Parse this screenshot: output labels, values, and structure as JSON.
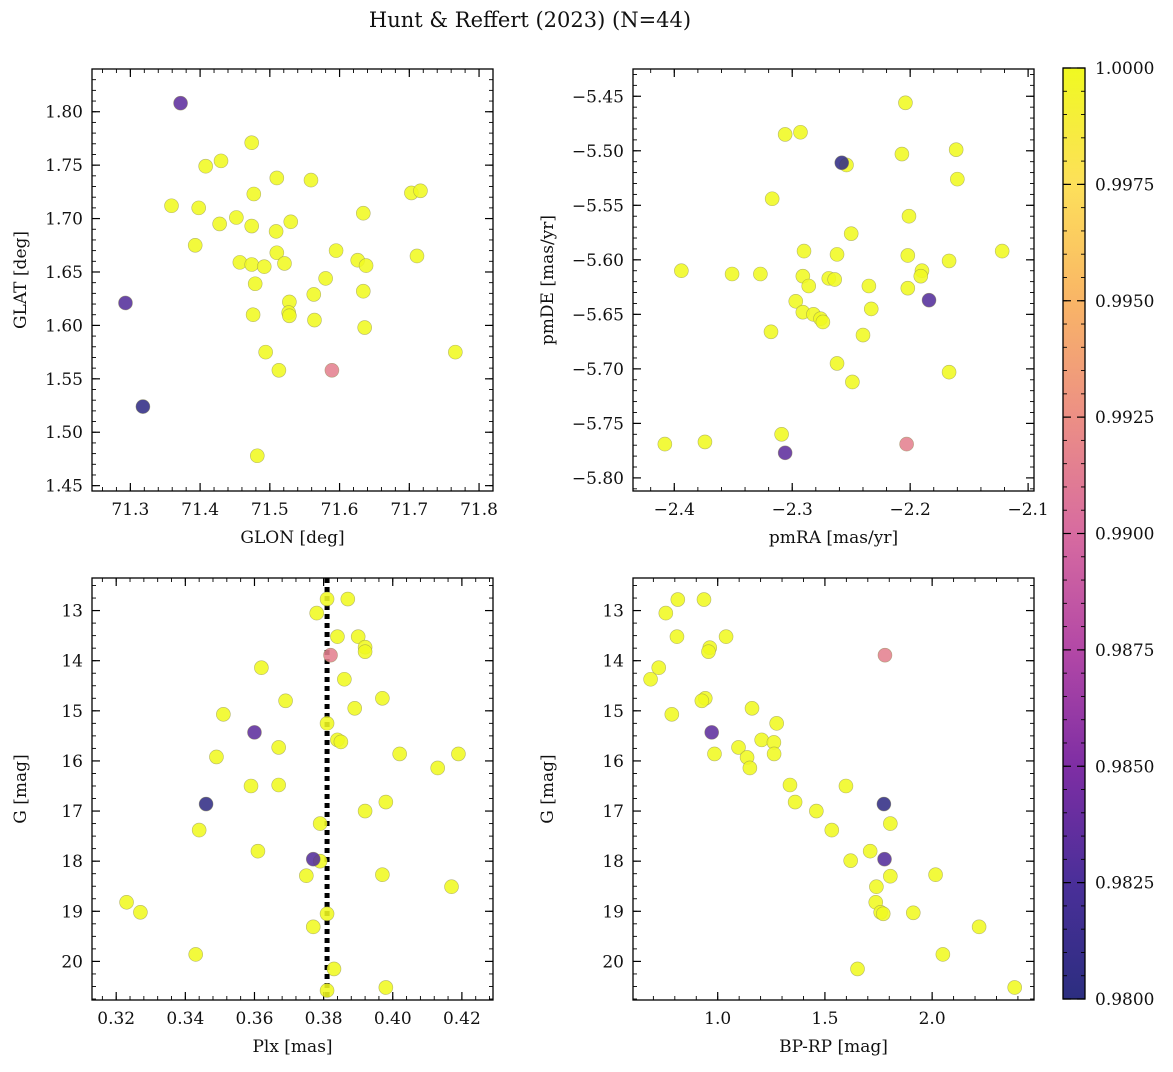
{
  "figure": {
    "title": "Hunt & Reffert (2023) (N=44)",
    "colorbar": {
      "min": 0.98,
      "max": 1.0,
      "tick_labels": [
        "0.9800",
        "0.9825",
        "0.9850",
        "0.9875",
        "0.9900",
        "0.9925",
        "0.9950",
        "0.9975",
        "1.0000"
      ],
      "colormap": "plasma",
      "colors": [
        "#2c2e80",
        "#4a2f99",
        "#7e2ea4",
        "#b348a6",
        "#d76ba0",
        "#ec8f85",
        "#f9b566",
        "#fde05a",
        "#f0f921"
      ]
    }
  },
  "chart_data": [
    {
      "type": "scatter",
      "xlabel": "GLON [deg]",
      "ylabel": "GLAT [deg]",
      "xlim": [
        71.245,
        71.82
      ],
      "ylim": [
        1.445,
        1.84
      ],
      "y_inverted": false,
      "xticks": [
        71.3,
        71.4,
        71.5,
        71.6,
        71.7,
        71.8
      ],
      "xtick_labels": [
        "71.3",
        "71.4",
        "71.5",
        "71.6",
        "71.7",
        "71.8"
      ],
      "yticks": [
        1.45,
        1.5,
        1.55,
        1.6,
        1.65,
        1.7,
        1.75,
        1.8
      ],
      "ytick_labels": [
        "1.45",
        "1.50",
        "1.55",
        "1.60",
        "1.65",
        "1.70",
        "1.75",
        "1.80"
      ],
      "points": [
        {
          "x": 71.372,
          "y": 1.808,
          "c": 0.9835
        },
        {
          "x": 71.293,
          "y": 1.621,
          "c": 0.983
        },
        {
          "x": 71.318,
          "y": 1.524,
          "c": 0.9805
        },
        {
          "x": 71.589,
          "y": 1.558,
          "c": 0.9915
        },
        {
          "x": 71.474,
          "y": 1.771,
          "c": 1.0
        },
        {
          "x": 71.43,
          "y": 1.754,
          "c": 1.0
        },
        {
          "x": 71.408,
          "y": 1.749,
          "c": 1.0
        },
        {
          "x": 71.51,
          "y": 1.738,
          "c": 1.0
        },
        {
          "x": 71.559,
          "y": 1.736,
          "c": 1.0
        },
        {
          "x": 71.477,
          "y": 1.723,
          "c": 1.0
        },
        {
          "x": 71.703,
          "y": 1.724,
          "c": 1.0
        },
        {
          "x": 71.716,
          "y": 1.726,
          "c": 1.0
        },
        {
          "x": 71.359,
          "y": 1.712,
          "c": 1.0
        },
        {
          "x": 71.398,
          "y": 1.71,
          "c": 1.0
        },
        {
          "x": 71.634,
          "y": 1.705,
          "c": 1.0
        },
        {
          "x": 71.452,
          "y": 1.701,
          "c": 1.0
        },
        {
          "x": 71.428,
          "y": 1.695,
          "c": 1.0
        },
        {
          "x": 71.474,
          "y": 1.693,
          "c": 1.0
        },
        {
          "x": 71.53,
          "y": 1.697,
          "c": 1.0
        },
        {
          "x": 71.509,
          "y": 1.688,
          "c": 1.0
        },
        {
          "x": 71.393,
          "y": 1.675,
          "c": 1.0
        },
        {
          "x": 71.595,
          "y": 1.67,
          "c": 1.0
        },
        {
          "x": 71.51,
          "y": 1.668,
          "c": 1.0
        },
        {
          "x": 71.711,
          "y": 1.665,
          "c": 1.0
        },
        {
          "x": 71.626,
          "y": 1.661,
          "c": 1.0
        },
        {
          "x": 71.457,
          "y": 1.659,
          "c": 1.0
        },
        {
          "x": 71.474,
          "y": 1.657,
          "c": 1.0
        },
        {
          "x": 71.521,
          "y": 1.658,
          "c": 1.0
        },
        {
          "x": 71.492,
          "y": 1.655,
          "c": 1.0
        },
        {
          "x": 71.638,
          "y": 1.656,
          "c": 1.0
        },
        {
          "x": 71.58,
          "y": 1.644,
          "c": 1.0
        },
        {
          "x": 71.479,
          "y": 1.639,
          "c": 1.0
        },
        {
          "x": 71.634,
          "y": 1.632,
          "c": 1.0
        },
        {
          "x": 71.563,
          "y": 1.629,
          "c": 1.0
        },
        {
          "x": 71.528,
          "y": 1.622,
          "c": 1.0
        },
        {
          "x": 71.527,
          "y": 1.612,
          "c": 1.0
        },
        {
          "x": 71.528,
          "y": 1.609,
          "c": 1.0
        },
        {
          "x": 71.476,
          "y": 1.61,
          "c": 1.0
        },
        {
          "x": 71.564,
          "y": 1.605,
          "c": 1.0
        },
        {
          "x": 71.636,
          "y": 1.598,
          "c": 1.0
        },
        {
          "x": 71.494,
          "y": 1.575,
          "c": 1.0
        },
        {
          "x": 71.766,
          "y": 1.575,
          "c": 1.0
        },
        {
          "x": 71.513,
          "y": 1.558,
          "c": 1.0
        },
        {
          "x": 71.482,
          "y": 1.478,
          "c": 1.0
        }
      ]
    },
    {
      "type": "scatter",
      "xlabel": "pmRA [mas/yr]",
      "ylabel": "pmDE [mas/yr]",
      "xlim": [
        -2.435,
        -2.095
      ],
      "ylim": [
        -5.812,
        -5.425
      ],
      "y_inverted": false,
      "xticks": [
        -2.4,
        -2.3,
        -2.2,
        -2.1
      ],
      "xtick_labels": [
        "−2.4",
        "−2.3",
        "−2.2",
        "−2.1"
      ],
      "yticks": [
        -5.8,
        -5.75,
        -5.7,
        -5.65,
        -5.6,
        -5.55,
        -5.5,
        -5.45
      ],
      "ytick_labels": [
        "−5.80",
        "−5.75",
        "−5.70",
        "−5.65",
        "−5.60",
        "−5.55",
        "−5.50",
        "−5.45"
      ],
      "points": [
        {
          "x": -2.258,
          "y": -5.511,
          "c": 0.9805
        },
        {
          "x": -2.184,
          "y": -5.637,
          "c": 0.983
        },
        {
          "x": -2.306,
          "y": -5.777,
          "c": 0.9835
        },
        {
          "x": -2.203,
          "y": -5.769,
          "c": 0.9915
        },
        {
          "x": -2.204,
          "y": -5.456,
          "c": 1.0
        },
        {
          "x": -2.306,
          "y": -5.485,
          "c": 1.0
        },
        {
          "x": -2.293,
          "y": -5.483,
          "c": 1.0
        },
        {
          "x": -2.161,
          "y": -5.499,
          "c": 1.0
        },
        {
          "x": -2.207,
          "y": -5.503,
          "c": 1.0
        },
        {
          "x": -2.254,
          "y": -5.513,
          "c": 1.0
        },
        {
          "x": -2.16,
          "y": -5.526,
          "c": 1.0
        },
        {
          "x": -2.317,
          "y": -5.544,
          "c": 1.0
        },
        {
          "x": -2.201,
          "y": -5.56,
          "c": 1.0
        },
        {
          "x": -2.25,
          "y": -5.576,
          "c": 1.0
        },
        {
          "x": -2.122,
          "y": -5.592,
          "c": 1.0
        },
        {
          "x": -2.29,
          "y": -5.592,
          "c": 1.0
        },
        {
          "x": -2.262,
          "y": -5.595,
          "c": 1.0
        },
        {
          "x": -2.202,
          "y": -5.596,
          "c": 1.0
        },
        {
          "x": -2.167,
          "y": -5.601,
          "c": 1.0
        },
        {
          "x": -2.394,
          "y": -5.61,
          "c": 1.0
        },
        {
          "x": -2.19,
          "y": -5.61,
          "c": 1.0
        },
        {
          "x": -2.351,
          "y": -5.613,
          "c": 1.0
        },
        {
          "x": -2.327,
          "y": -5.613,
          "c": 1.0
        },
        {
          "x": -2.191,
          "y": -5.615,
          "c": 1.0
        },
        {
          "x": -2.291,
          "y": -5.615,
          "c": 1.0
        },
        {
          "x": -2.269,
          "y": -5.617,
          "c": 1.0
        },
        {
          "x": -2.264,
          "y": -5.618,
          "c": 1.0
        },
        {
          "x": -2.235,
          "y": -5.624,
          "c": 1.0
        },
        {
          "x": -2.286,
          "y": -5.624,
          "c": 1.0
        },
        {
          "x": -2.202,
          "y": -5.626,
          "c": 1.0
        },
        {
          "x": -2.297,
          "y": -5.638,
          "c": 1.0
        },
        {
          "x": -2.233,
          "y": -5.645,
          "c": 1.0
        },
        {
          "x": -2.291,
          "y": -5.648,
          "c": 1.0
        },
        {
          "x": -2.282,
          "y": -5.65,
          "c": 1.0
        },
        {
          "x": -2.276,
          "y": -5.654,
          "c": 1.0
        },
        {
          "x": -2.274,
          "y": -5.657,
          "c": 1.0
        },
        {
          "x": -2.318,
          "y": -5.666,
          "c": 1.0
        },
        {
          "x": -2.24,
          "y": -5.669,
          "c": 1.0
        },
        {
          "x": -2.262,
          "y": -5.695,
          "c": 1.0
        },
        {
          "x": -2.167,
          "y": -5.703,
          "c": 1.0
        },
        {
          "x": -2.249,
          "y": -5.712,
          "c": 1.0
        },
        {
          "x": -2.309,
          "y": -5.76,
          "c": 1.0
        },
        {
          "x": -2.374,
          "y": -5.767,
          "c": 1.0
        },
        {
          "x": -2.408,
          "y": -5.769,
          "c": 1.0
        }
      ]
    },
    {
      "type": "scatter",
      "xlabel": "Plx [mas]",
      "ylabel": "G [mag]",
      "xlim": [
        0.313,
        0.429
      ],
      "ylim": [
        20.77,
        12.35
      ],
      "y_inverted": true,
      "vline": {
        "x": 0.381,
        "style": "dotted",
        "color": "#000000"
      },
      "xticks": [
        0.32,
        0.34,
        0.36,
        0.38,
        0.4,
        0.42
      ],
      "xtick_labels": [
        "0.32",
        "0.34",
        "0.36",
        "0.38",
        "0.40",
        "0.42"
      ],
      "yticks": [
        13,
        14,
        15,
        16,
        17,
        18,
        19,
        20
      ],
      "ytick_labels": [
        "13",
        "14",
        "15",
        "16",
        "17",
        "18",
        "19",
        "20"
      ],
      "points": [
        {
          "x": 0.346,
          "y": 16.86,
          "c": 0.9805
        },
        {
          "x": 0.36,
          "y": 15.43,
          "c": 0.9835
        },
        {
          "x": 0.377,
          "y": 17.96,
          "c": 0.983
        },
        {
          "x": 0.382,
          "y": 13.89,
          "c": 0.9915
        },
        {
          "x": 0.381,
          "y": 12.77,
          "c": 1.0
        },
        {
          "x": 0.387,
          "y": 12.77,
          "c": 1.0
        },
        {
          "x": 0.378,
          "y": 13.05,
          "c": 1.0
        },
        {
          "x": 0.384,
          "y": 13.52,
          "c": 1.0
        },
        {
          "x": 0.39,
          "y": 13.52,
          "c": 1.0
        },
        {
          "x": 0.392,
          "y": 13.73,
          "c": 1.0
        },
        {
          "x": 0.392,
          "y": 13.82,
          "c": 1.0
        },
        {
          "x": 0.362,
          "y": 14.14,
          "c": 1.0
        },
        {
          "x": 0.386,
          "y": 14.37,
          "c": 1.0
        },
        {
          "x": 0.369,
          "y": 14.8,
          "c": 1.0
        },
        {
          "x": 0.397,
          "y": 14.75,
          "c": 1.0
        },
        {
          "x": 0.389,
          "y": 14.95,
          "c": 1.0
        },
        {
          "x": 0.351,
          "y": 15.07,
          "c": 1.0
        },
        {
          "x": 0.381,
          "y": 15.25,
          "c": 1.0
        },
        {
          "x": 0.384,
          "y": 15.58,
          "c": 1.0
        },
        {
          "x": 0.385,
          "y": 15.62,
          "c": 1.0
        },
        {
          "x": 0.367,
          "y": 15.73,
          "c": 1.0
        },
        {
          "x": 0.402,
          "y": 15.86,
          "c": 1.0
        },
        {
          "x": 0.419,
          "y": 15.86,
          "c": 1.0
        },
        {
          "x": 0.349,
          "y": 15.92,
          "c": 1.0
        },
        {
          "x": 0.413,
          "y": 16.14,
          "c": 1.0
        },
        {
          "x": 0.359,
          "y": 16.5,
          "c": 1.0
        },
        {
          "x": 0.367,
          "y": 16.48,
          "c": 1.0
        },
        {
          "x": 0.398,
          "y": 16.82,
          "c": 1.0
        },
        {
          "x": 0.392,
          "y": 17.0,
          "c": 1.0
        },
        {
          "x": 0.379,
          "y": 17.25,
          "c": 1.0
        },
        {
          "x": 0.344,
          "y": 17.38,
          "c": 1.0
        },
        {
          "x": 0.361,
          "y": 17.8,
          "c": 1.0
        },
        {
          "x": 0.379,
          "y": 18.0,
          "c": 1.0
        },
        {
          "x": 0.375,
          "y": 18.29,
          "c": 1.0
        },
        {
          "x": 0.397,
          "y": 18.27,
          "c": 1.0
        },
        {
          "x": 0.417,
          "y": 18.51,
          "c": 1.0
        },
        {
          "x": 0.323,
          "y": 18.82,
          "c": 1.0
        },
        {
          "x": 0.327,
          "y": 19.02,
          "c": 1.0
        },
        {
          "x": 0.381,
          "y": 19.05,
          "c": 1.0
        },
        {
          "x": 0.377,
          "y": 19.31,
          "c": 1.0
        },
        {
          "x": 0.343,
          "y": 19.86,
          "c": 1.0
        },
        {
          "x": 0.383,
          "y": 20.15,
          "c": 1.0
        },
        {
          "x": 0.398,
          "y": 20.52,
          "c": 1.0
        },
        {
          "x": 0.381,
          "y": 20.58,
          "c": 1.0
        }
      ]
    },
    {
      "type": "scatter",
      "xlabel": "BP-RP [mag]",
      "ylabel": "G [mag]",
      "xlim": [
        0.605,
        2.475
      ],
      "ylim": [
        20.77,
        12.35
      ],
      "y_inverted": true,
      "xticks": [
        1.0,
        1.5,
        2.0
      ],
      "xtick_labels": [
        "1.0",
        "1.5",
        "2.0"
      ],
      "yticks": [
        13,
        14,
        15,
        16,
        17,
        18,
        19,
        20
      ],
      "ytick_labels": [
        "13",
        "14",
        "15",
        "16",
        "17",
        "18",
        "19",
        "20"
      ],
      "points": [
        {
          "x": 1.775,
          "y": 16.86,
          "c": 0.9805
        },
        {
          "x": 0.972,
          "y": 15.43,
          "c": 0.9835
        },
        {
          "x": 1.778,
          "y": 17.96,
          "c": 0.983
        },
        {
          "x": 1.78,
          "y": 13.89,
          "c": 0.9915
        },
        {
          "x": 0.814,
          "y": 12.78,
          "c": 1.0
        },
        {
          "x": 0.936,
          "y": 12.78,
          "c": 1.0
        },
        {
          "x": 0.758,
          "y": 13.05,
          "c": 1.0
        },
        {
          "x": 0.81,
          "y": 13.52,
          "c": 1.0
        },
        {
          "x": 1.039,
          "y": 13.52,
          "c": 1.0
        },
        {
          "x": 0.963,
          "y": 13.74,
          "c": 1.0
        },
        {
          "x": 0.957,
          "y": 13.82,
          "c": 1.0
        },
        {
          "x": 0.725,
          "y": 14.14,
          "c": 1.0
        },
        {
          "x": 0.687,
          "y": 14.37,
          "c": 1.0
        },
        {
          "x": 0.942,
          "y": 14.75,
          "c": 1.0
        },
        {
          "x": 0.926,
          "y": 14.8,
          "c": 1.0
        },
        {
          "x": 1.16,
          "y": 14.95,
          "c": 1.0
        },
        {
          "x": 0.786,
          "y": 15.07,
          "c": 1.0
        },
        {
          "x": 1.275,
          "y": 15.25,
          "c": 1.0
        },
        {
          "x": 1.205,
          "y": 15.58,
          "c": 1.0
        },
        {
          "x": 1.262,
          "y": 15.63,
          "c": 1.0
        },
        {
          "x": 1.097,
          "y": 15.73,
          "c": 1.0
        },
        {
          "x": 0.985,
          "y": 15.86,
          "c": 1.0
        },
        {
          "x": 1.263,
          "y": 15.86,
          "c": 1.0
        },
        {
          "x": 1.137,
          "y": 15.93,
          "c": 1.0
        },
        {
          "x": 1.15,
          "y": 16.14,
          "c": 1.0
        },
        {
          "x": 1.337,
          "y": 16.48,
          "c": 1.0
        },
        {
          "x": 1.598,
          "y": 16.5,
          "c": 1.0
        },
        {
          "x": 1.361,
          "y": 16.82,
          "c": 1.0
        },
        {
          "x": 1.46,
          "y": 17.0,
          "c": 1.0
        },
        {
          "x": 1.805,
          "y": 17.25,
          "c": 1.0
        },
        {
          "x": 1.532,
          "y": 17.38,
          "c": 1.0
        },
        {
          "x": 1.711,
          "y": 17.8,
          "c": 1.0
        },
        {
          "x": 1.62,
          "y": 17.99,
          "c": 1.0
        },
        {
          "x": 1.805,
          "y": 18.3,
          "c": 1.0
        },
        {
          "x": 2.016,
          "y": 18.27,
          "c": 1.0
        },
        {
          "x": 1.74,
          "y": 18.51,
          "c": 1.0
        },
        {
          "x": 1.737,
          "y": 18.82,
          "c": 1.0
        },
        {
          "x": 1.76,
          "y": 19.02,
          "c": 1.0
        },
        {
          "x": 1.772,
          "y": 19.05,
          "c": 1.0
        },
        {
          "x": 1.912,
          "y": 19.03,
          "c": 1.0
        },
        {
          "x": 2.219,
          "y": 19.31,
          "c": 1.0
        },
        {
          "x": 2.05,
          "y": 19.86,
          "c": 1.0
        },
        {
          "x": 1.652,
          "y": 20.15,
          "c": 1.0
        },
        {
          "x": 2.385,
          "y": 20.52,
          "c": 1.0
        }
      ]
    }
  ]
}
